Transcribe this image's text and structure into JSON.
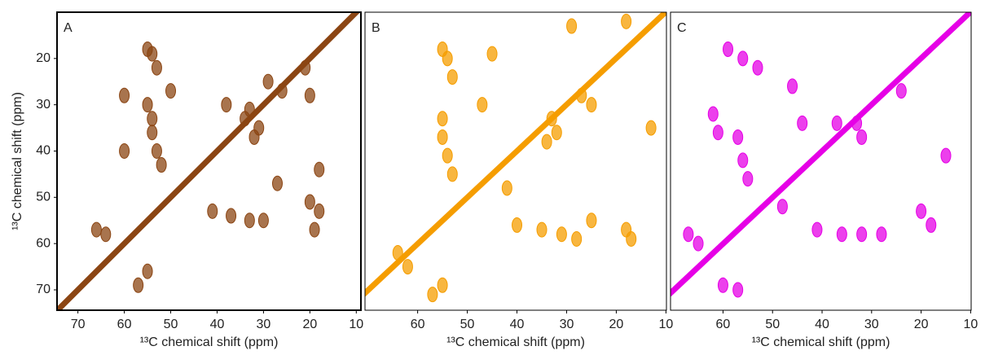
{
  "chart_data": [
    {
      "type": "contour",
      "panel_label": "A",
      "color": "#8b4513",
      "x_label": "¹³C chemical shift (ppm)",
      "y_label": "¹³C chemical shift (ppm)",
      "xlim": [
        74.5,
        9
      ],
      "ylim": [
        10,
        74.4
      ],
      "xticks": [
        70,
        60,
        50,
        40,
        30,
        20,
        10
      ],
      "yticks": [
        20,
        30,
        40,
        50,
        60,
        70
      ],
      "x": [
        55,
        54,
        53,
        55,
        54,
        54,
        53,
        52,
        33,
        34,
        31,
        32,
        20,
        57,
        55,
        66,
        64,
        41,
        37,
        33,
        30,
        20,
        18,
        19,
        50,
        29,
        21,
        26,
        38,
        27,
        60,
        18,
        60
      ],
      "values": [
        18,
        19,
        22,
        30,
        33,
        36,
        40,
        43,
        31,
        33,
        35,
        37,
        28,
        69,
        66,
        57,
        58,
        53,
        54,
        55,
        55,
        51,
        53,
        57,
        27,
        25,
        22,
        27,
        30,
        47,
        40,
        44,
        28
      ]
    },
    {
      "type": "contour",
      "panel_label": "B",
      "color": "#f59d00",
      "x_label": "¹³C chemical shift (ppm)",
      "xlim": [
        70.6,
        9.9
      ],
      "ylim": [
        10,
        74.4
      ],
      "xticks": [
        60,
        50,
        40,
        30,
        20,
        10
      ],
      "x": [
        55,
        54,
        53,
        55,
        55,
        54,
        53,
        33,
        32,
        34,
        27,
        25,
        64,
        62,
        57,
        55,
        40,
        35,
        31,
        28,
        25,
        18,
        17,
        29,
        18,
        45,
        47,
        42,
        13
      ],
      "values": [
        18,
        20,
        24,
        33,
        37,
        41,
        45,
        33,
        36,
        38,
        28,
        30,
        62,
        65,
        71,
        69,
        56,
        57,
        58,
        59,
        55,
        57,
        59,
        13,
        12,
        19,
        30,
        48,
        35
      ]
    },
    {
      "type": "contour",
      "panel_label": "C",
      "color": "#e600e6",
      "x_label": "¹³C chemical shift (ppm)",
      "xlim": [
        70.6,
        9.9
      ],
      "ylim": [
        10,
        74.4
      ],
      "xticks": [
        60,
        50,
        40,
        30,
        20,
        10
      ],
      "x": [
        59,
        56,
        53,
        62,
        61,
        57,
        56,
        55,
        37,
        33,
        32,
        24,
        67,
        65,
        60,
        57,
        41,
        36,
        32,
        28,
        20,
        18,
        46,
        44,
        15,
        48
      ],
      "values": [
        18,
        20,
        22,
        32,
        36,
        37,
        42,
        46,
        34,
        34,
        37,
        27,
        58,
        60,
        69,
        70,
        57,
        58,
        58,
        58,
        53,
        56,
        26,
        34,
        41,
        52
      ]
    }
  ]
}
